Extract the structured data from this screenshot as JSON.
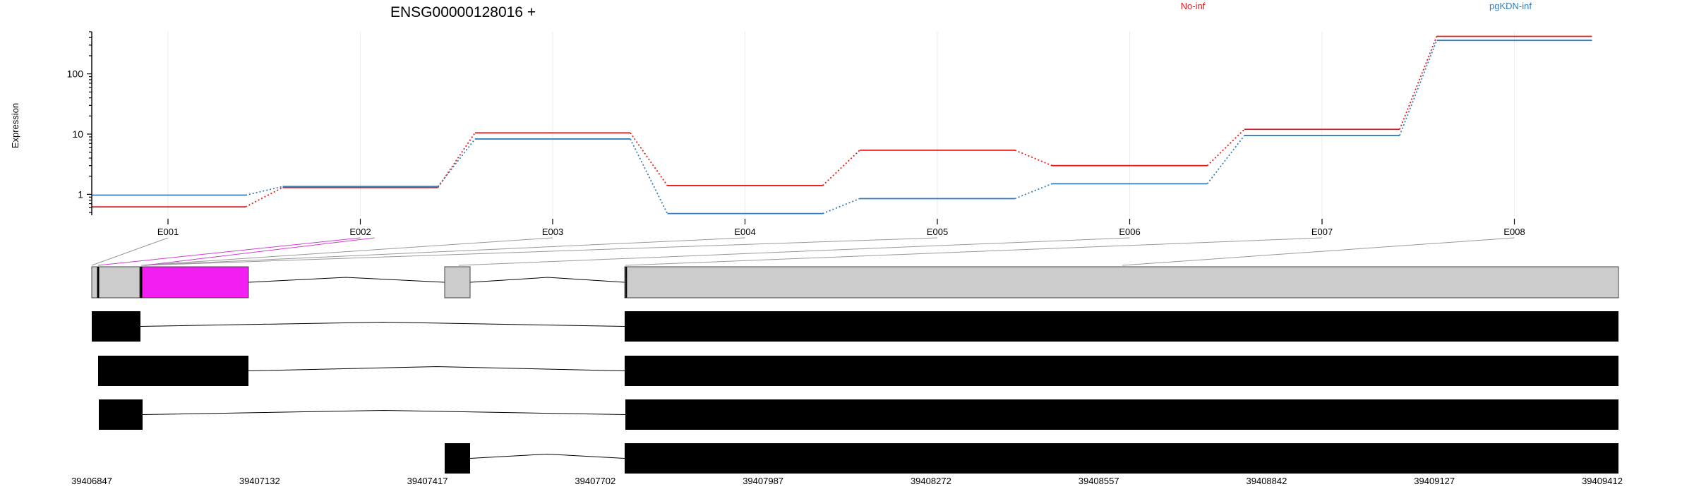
{
  "chart_data": {
    "type": "line",
    "title": "ENSG00000128016 +",
    "ylabel": "Expression",
    "yscale": "log",
    "yticks": [
      "1",
      "10",
      "100"
    ],
    "ylim": [
      0.45,
      500
    ],
    "grid": true,
    "legend_placement": "top",
    "categories": [
      "E001",
      "E002",
      "E003",
      "E004",
      "E005",
      "E006",
      "E007",
      "E008"
    ],
    "series": [
      {
        "name": "No-inf",
        "color": "#e41a1c",
        "values": [
          0.62,
          1.3,
          10.5,
          1.4,
          5.4,
          3.0,
          12.0,
          420
        ]
      },
      {
        "name": "pgKDN-inf",
        "color": "#377eb8",
        "values": [
          0.97,
          1.35,
          8.3,
          0.48,
          0.85,
          1.5,
          9.5,
          360
        ]
      }
    ],
    "genomic_axis": {
      "labels": [
        "39406847",
        "39407132",
        "39407417",
        "39407702",
        "39407987",
        "39408272",
        "39408557",
        "39408842",
        "39409127",
        "39409412"
      ]
    },
    "exons": [
      "E001",
      "E002",
      "E003",
      "E004",
      "E005",
      "E006",
      "E007",
      "E008"
    ],
    "highlight_exon": "E002",
    "highlight_color": "#f21ef2",
    "transcript_count": 4
  }
}
